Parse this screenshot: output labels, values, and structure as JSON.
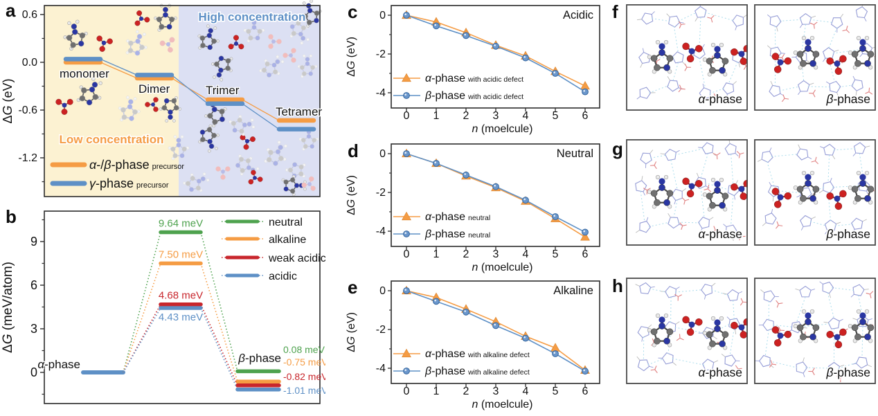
{
  "panel_letters": {
    "a": "a",
    "b": "b",
    "c": "c",
    "d": "d",
    "e": "e",
    "f": "f",
    "g": "g",
    "h": "h"
  },
  "colors": {
    "orange": "#F59C44",
    "blue": "#5E90C6",
    "green": "#4EA24E",
    "red": "#C8262C",
    "panel_a_left_bg": "#FCF2D2",
    "panel_a_right_bg": "#DCE0F3",
    "axis": "#2b2b2b",
    "text": "#111111"
  },
  "chart_data": [
    {
      "id": "a",
      "type": "line",
      "title": "",
      "ylabel": "ΔG (eV)",
      "yticks": [
        "0.6",
        "0.0",
        "-0.6",
        "-1.2"
      ],
      "ytick_values": [
        0.6,
        0.0,
        -0.6,
        -1.2
      ],
      "ylim": [
        -1.55,
        0.72
      ],
      "categories": [
        "monomer",
        "Dimer",
        "Trimer",
        "Tetramer"
      ],
      "series": [
        {
          "name": "α-/β-phase precursor",
          "legend_main": "α-/β-phase",
          "legend_sub": "precursor",
          "color": "orange",
          "values": [
            0.0,
            -0.2,
            -0.47,
            -0.73
          ]
        },
        {
          "name": "γ-phase precursor",
          "legend_main": "γ-phase",
          "legend_sub": "precursor",
          "color": "blue",
          "values": [
            0.04,
            -0.16,
            -0.52,
            -0.84
          ]
        }
      ],
      "regions": [
        {
          "label": "Low concentration",
          "text_color": "orange",
          "bg": "panel_a_left_bg"
        },
        {
          "label": "High concentration",
          "text_color": "blue",
          "bg": "panel_a_right_bg"
        }
      ],
      "legend_position": "lower left"
    },
    {
      "id": "b",
      "type": "line",
      "title": "",
      "ylabel": "ΔG (meV/atom)",
      "yticks": [
        "0",
        "3",
        "6",
        "9"
      ],
      "ytick_values": [
        0,
        3,
        6,
        9
      ],
      "start_label": "α-phase",
      "end_label": "β-phase",
      "start_value_mev": 0,
      "series": [
        {
          "name": "neutral",
          "color": "green",
          "barrier_mev": 9.64,
          "barrier_label": "9.64 meV",
          "final_mev": 0.08,
          "final_label": "0.08 meV"
        },
        {
          "name": "alkaline",
          "color": "orange",
          "barrier_mev": 7.5,
          "barrier_label": "7.50 meV",
          "final_mev": -0.75,
          "final_label": "-0.75 meV"
        },
        {
          "name": "weak acidic",
          "color": "red",
          "barrier_mev": 4.68,
          "barrier_label": "4.68 meV",
          "final_mev": -0.82,
          "final_label": "-0.82 meV"
        },
        {
          "name": "acidic",
          "color": "blue",
          "barrier_mev": 4.43,
          "barrier_label": "4.43 meV",
          "final_mev": -1.01,
          "final_label": "-1.01 meV"
        }
      ],
      "legend_position": "upper right"
    },
    {
      "id": "c",
      "type": "line",
      "title": "Acidic",
      "xlabel": "n (moelcule)",
      "ylabel": "ΔG (eV)",
      "x": [
        0,
        1,
        2,
        3,
        4,
        5,
        6
      ],
      "xticks": [
        "0",
        "1",
        "2",
        "3",
        "4",
        "5",
        "6"
      ],
      "yticks": [
        "0",
        "-2",
        "-4"
      ],
      "ytick_values": [
        0,
        -2,
        -4
      ],
      "ylim": [
        -4.75,
        0.5
      ],
      "series": [
        {
          "name": "α-phase with acidic defect",
          "legend_main": "α-phase",
          "legend_sub": "with acidic defect",
          "marker": "triangle",
          "color": "orange",
          "values": [
            0,
            -0.35,
            -0.9,
            -1.55,
            -2.1,
            -2.9,
            -3.65
          ]
        },
        {
          "name": "β-phase with acidic defect",
          "legend_main": "β-phase",
          "legend_sub": "with acidic defect",
          "marker": "circle",
          "color": "blue",
          "values": [
            0,
            -0.55,
            -1.05,
            -1.6,
            -2.2,
            -3.0,
            -3.95
          ]
        }
      ],
      "legend_position": "lower left"
    },
    {
      "id": "d",
      "type": "line",
      "title": "Neutral",
      "xlabel": "n (moelcule)",
      "ylabel": "ΔG (eV)",
      "x": [
        0,
        1,
        2,
        3,
        4,
        5,
        6
      ],
      "xticks": [
        "0",
        "1",
        "2",
        "3",
        "4",
        "5",
        "6"
      ],
      "yticks": [
        "0",
        "-2",
        "-4"
      ],
      "ytick_values": [
        0,
        -2,
        -4
      ],
      "ylim": [
        -4.85,
        0.5
      ],
      "series": [
        {
          "name": "α-phase neutral",
          "legend_main": "α-phase",
          "legend_sub": "neutral",
          "marker": "triangle",
          "color": "orange",
          "values": [
            0,
            -0.5,
            -1.15,
            -1.75,
            -2.45,
            -3.35,
            -4.3
          ]
        },
        {
          "name": "β-phase neutral",
          "legend_main": "β-phase",
          "legend_sub": "neutral",
          "marker": "circle",
          "color": "blue",
          "values": [
            0,
            -0.5,
            -1.1,
            -1.7,
            -2.4,
            -3.25,
            -4.05
          ]
        }
      ],
      "legend_position": "lower left"
    },
    {
      "id": "e",
      "type": "line",
      "title": "Alkaline",
      "xlabel": "n (moelcule)",
      "ylabel": "ΔG (eV)",
      "x": [
        0,
        1,
        2,
        3,
        4,
        5,
        6
      ],
      "xticks": [
        "0",
        "1",
        "2",
        "3",
        "4",
        "5",
        "6"
      ],
      "yticks": [
        "0",
        "-2",
        "-4"
      ],
      "ytick_values": [
        0,
        -2,
        -4
      ],
      "ylim": [
        -4.75,
        0.5
      ],
      "series": [
        {
          "name": "α-phase with alkaline defect",
          "legend_main": "α-phase",
          "legend_sub": "with alkaline defect",
          "marker": "triangle",
          "color": "orange",
          "values": [
            0,
            -0.35,
            -0.95,
            -1.6,
            -2.35,
            -2.95,
            -4.1
          ]
        },
        {
          "name": "β-phase with alkaline defect",
          "legend_main": "β-phase",
          "legend_sub": "with alkaline defect",
          "marker": "circle",
          "color": "blue",
          "values": [
            0,
            -0.55,
            -1.1,
            -1.8,
            -2.45,
            -3.25,
            -4.15
          ]
        }
      ],
      "legend_position": "lower left"
    }
  ],
  "structure_panels": [
    {
      "id": "f",
      "boxes": [
        {
          "label": "α-phase"
        },
        {
          "label": "β-phase"
        }
      ]
    },
    {
      "id": "g",
      "boxes": [
        {
          "label": "α-phase"
        },
        {
          "label": "β-phase"
        }
      ]
    },
    {
      "id": "h",
      "boxes": [
        {
          "label": "α-phase"
        },
        {
          "label": "β-phase"
        }
      ]
    }
  ]
}
